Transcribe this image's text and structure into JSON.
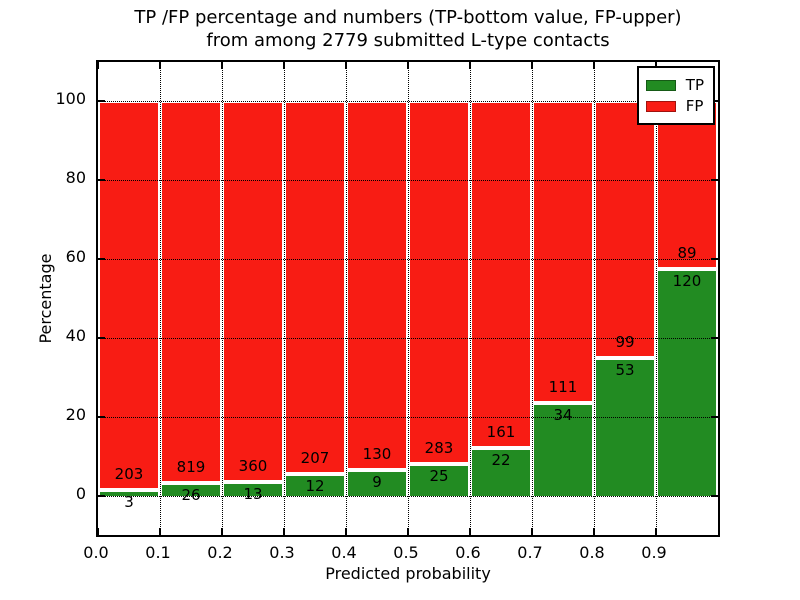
{
  "title": {
    "line1": "TP /FP percentage and numbers (TP-bottom value, FP-upper)",
    "line2": "from among 2779 submitted L-type contacts"
  },
  "axes": {
    "ylabel": "Percentage",
    "xlabel": "Predicted probability",
    "ytick_labels": [
      "0",
      "20",
      "40",
      "60",
      "80",
      "100"
    ],
    "ytick_values": [
      0,
      20,
      40,
      60,
      80,
      100
    ],
    "xtick_labels": [
      "0.0",
      "0.1",
      "0.2",
      "0.3",
      "0.4",
      "0.5",
      "0.6",
      "0.7",
      "0.8",
      "0.9"
    ],
    "xtick_values": [
      0,
      0.1,
      0.2,
      0.3,
      0.4,
      0.5,
      0.6,
      0.7,
      0.8,
      0.9
    ],
    "ylim": [
      -10,
      110
    ],
    "xlim": [
      0,
      1
    ]
  },
  "legend": {
    "items": [
      {
        "label": "TP",
        "color": "#228b22"
      },
      {
        "label": "FP",
        "color": "#f81c14"
      }
    ]
  },
  "colors": {
    "tp_green": "#228b22",
    "fp_red": "#f81c14",
    "grid": "#000000",
    "background": "#ffffff"
  },
  "chart_data": {
    "type": "bar",
    "stacked": true,
    "normalized_to_percent": true,
    "title": "TP /FP percentage and numbers (TP-bottom value, FP-upper) from among 2779 submitted L-type contacts",
    "xlabel": "Predicted probability",
    "ylabel": "Percentage",
    "xlim": [
      0,
      1
    ],
    "ylim": [
      -10,
      110
    ],
    "bin_width": 0.1,
    "grid": "dotted",
    "legend_position": "upper right",
    "total_contacts": 2779,
    "categories": [
      "0.0-0.1",
      "0.1-0.2",
      "0.2-0.3",
      "0.3-0.4",
      "0.4-0.5",
      "0.5-0.6",
      "0.6-0.7",
      "0.7-0.8",
      "0.8-0.9",
      "0.9-1.0"
    ],
    "series": [
      {
        "name": "TP",
        "color": "#228b22",
        "counts": [
          3,
          26,
          13,
          12,
          9,
          25,
          22,
          34,
          53,
          120
        ]
      },
      {
        "name": "FP",
        "color": "#f81c14",
        "counts": [
          203,
          819,
          360,
          207,
          130,
          283,
          161,
          111,
          99,
          89
        ]
      }
    ],
    "tp_percent": [
      1.46,
      3.08,
      3.49,
      5.48,
      6.47,
      8.12,
      12.02,
      23.45,
      34.87,
      57.42
    ],
    "bins": [
      {
        "range": "0.0-0.1",
        "tp": 3,
        "fp": 203
      },
      {
        "range": "0.1-0.2",
        "tp": 26,
        "fp": 819
      },
      {
        "range": "0.2-0.3",
        "tp": 13,
        "fp": 360
      },
      {
        "range": "0.3-0.4",
        "tp": 12,
        "fp": 207
      },
      {
        "range": "0.4-0.5",
        "tp": 9,
        "fp": 130
      },
      {
        "range": "0.5-0.6",
        "tp": 25,
        "fp": 283
      },
      {
        "range": "0.6-0.7",
        "tp": 22,
        "fp": 161
      },
      {
        "range": "0.7-0.8",
        "tp": 34,
        "fp": 111
      },
      {
        "range": "0.8-0.9",
        "tp": 53,
        "fp": 99
      },
      {
        "range": "0.9-1.0",
        "tp": 120,
        "fp": 89
      }
    ]
  }
}
